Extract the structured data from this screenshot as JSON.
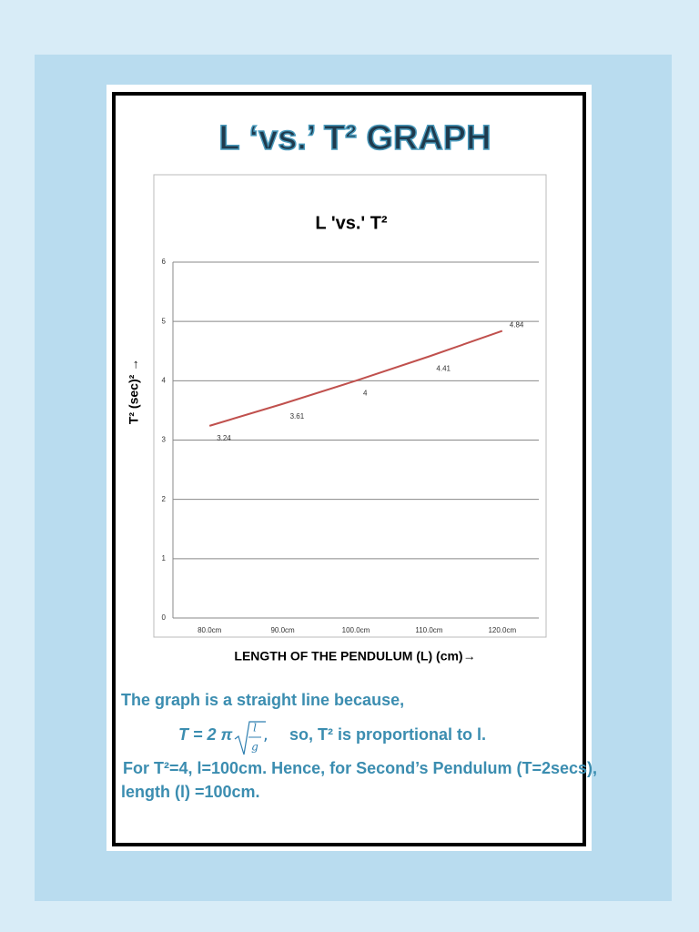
{
  "heading": "L ‘vs.’ T² GRAPH",
  "chart_data": {
    "type": "line",
    "title": "L 'vs.' T²",
    "x_label": "LENGTH OF THE PENDULUM (L) (cm)→",
    "y_label": "T² (sec)² →",
    "categories": [
      "80.0cm",
      "90.0cm",
      "100.0cm",
      "110.0cm",
      "120.0cm"
    ],
    "values": [
      3.24,
      3.61,
      4,
      4.41,
      4.84
    ],
    "color": "#c0504d",
    "ylim": [
      0,
      6
    ],
    "yticks": [
      0,
      1,
      2,
      3,
      4,
      5,
      6
    ],
    "grid": true
  },
  "notes": {
    "line1": "The graph is a straight line because,",
    "formula": {
      "lhs": "T = 2 π",
      "numerator": "l",
      "denominator": "g",
      "comma": ",",
      "tail": "so, T² is proportional to l."
    },
    "line3": "For T²=4, l=100cm. Hence, for Second’s Pendulum (T=2secs),",
    "line4": "length (l) =100cm."
  }
}
